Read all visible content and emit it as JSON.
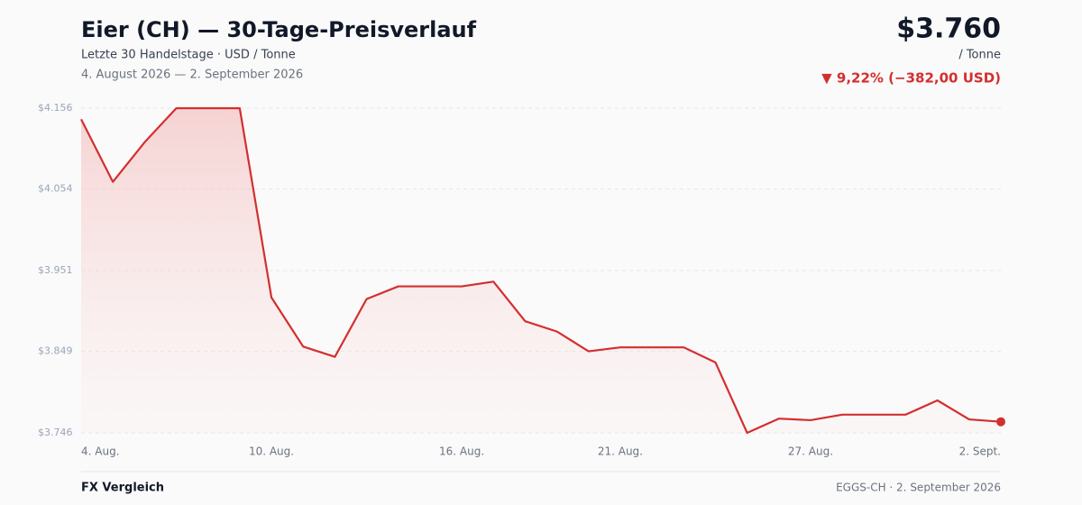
{
  "chart_data": {
    "type": "line",
    "title": "Eier (CH) — 30-Tage-Preisverlauf",
    "subtitle": "Letzte 30 Handelstage · USD / Tonne",
    "date_range": "4. August 2026 — 2. September 2026",
    "price": "$3.760",
    "unit": "/ Tonne",
    "change": "▼ 9,22% (−382,00 USD)",
    "categories": [
      "4. Aug.",
      null,
      null,
      null,
      null,
      null,
      "10. Aug.",
      null,
      null,
      null,
      null,
      null,
      "16. Aug.",
      null,
      null,
      null,
      null,
      "21. Aug.",
      null,
      null,
      null,
      null,
      null,
      "27. Aug.",
      null,
      null,
      null,
      null,
      null,
      "2. Sept."
    ],
    "series": [
      {
        "name": "Eier (CH)",
        "color": "#d32f2f",
        "values": [
          4142,
          4063,
          4113,
          4156,
          4156,
          4156,
          3917,
          3855,
          3842,
          3915,
          3931,
          3931,
          3931,
          3937,
          3887,
          3874,
          3849,
          3854,
          3854,
          3854,
          3835,
          3746,
          3764,
          3762,
          3769,
          3769,
          3769,
          3787,
          3763,
          3760
        ]
      }
    ],
    "ylim": [
      3746,
      4156
    ],
    "yticks": [
      {
        "value": 3746,
        "label": "$3.746"
      },
      {
        "value": 3849,
        "label": "$3.849"
      },
      {
        "value": 3951,
        "label": "$3.951"
      },
      {
        "value": 4054,
        "label": "$4.054"
      },
      {
        "value": 4156,
        "label": "$4.156"
      }
    ],
    "grid": true
  },
  "footer": {
    "left": "FX Vergleich",
    "right": "EGGS-CH · 2. September 2026"
  }
}
